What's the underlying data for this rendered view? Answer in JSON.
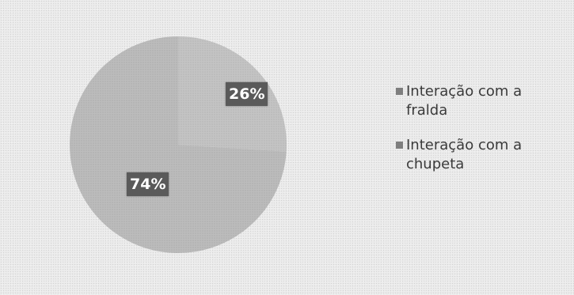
{
  "chart_data": {
    "type": "pie",
    "slices": [
      {
        "label": "Interação com a fralda",
        "value": 26,
        "display": "26%",
        "color": "#c4c4c4"
      },
      {
        "label": "Interação com a chupeta",
        "value": 74,
        "display": "74%",
        "color": "#bcbcbc"
      }
    ],
    "legend_position": "right"
  },
  "legend": {
    "items": [
      {
        "label": "Interação com a fralda"
      },
      {
        "label": "Interação com a chupeta"
      }
    ]
  }
}
